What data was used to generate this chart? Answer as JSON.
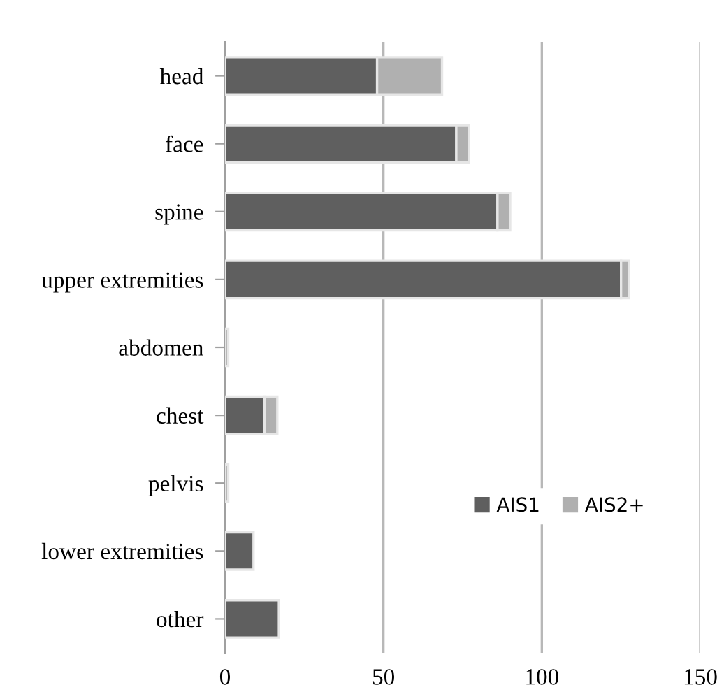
{
  "chart_data": {
    "type": "bar",
    "orientation": "horizontal",
    "stacked": true,
    "categories": [
      "head",
      "face",
      "spine",
      "upper extremities",
      "abdomen",
      "chest",
      "pelvis",
      "lower extremities",
      "other"
    ],
    "series": [
      {
        "name": "AIS1",
        "color": "#5f5f5f",
        "values": [
          48,
          73,
          86,
          125,
          null,
          12.5,
          null,
          9,
          17
        ]
      },
      {
        "name": "AIS2+",
        "color": "#b0b0b0",
        "values": [
          20.5,
          4,
          4,
          2.5,
          1,
          4,
          1,
          null,
          null
        ]
      }
    ],
    "xlim": [
      0,
      150
    ],
    "xticks": [
      0,
      50,
      100,
      150
    ],
    "grid": "x",
    "legend": "bottom right"
  }
}
